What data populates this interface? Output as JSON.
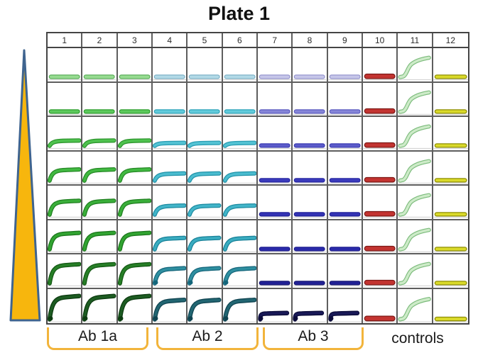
{
  "chart_data": {
    "type": "line",
    "title": "Plate 1",
    "description": "96-well plate figure: 8 rows x 12 columns of miniature kinetic binding curves; signal amplitude increases down the rows with concentration",
    "columns": [
      "1",
      "2",
      "3",
      "4",
      "5",
      "6",
      "7",
      "8",
      "9",
      "10",
      "11",
      "12"
    ],
    "row_count": 8,
    "legend_position": "bottom",
    "groups": [
      {
        "label": "Ab 1a",
        "columns": "1-3",
        "bracket": true,
        "color_family": "green"
      },
      {
        "label": "Ab 2",
        "columns": "4-6",
        "bracket": true,
        "color_family": "cyan"
      },
      {
        "label": "Ab 3",
        "columns": "7-9",
        "bracket": true,
        "color_family": "blue-purple"
      },
      {
        "label": "controls",
        "columns": "10-12",
        "bracket": false,
        "color_family": "red / pale-green / yellow"
      }
    ],
    "concentration_gradient": {
      "shape": "triangle, narrow at top and wide at bottom",
      "fill": "#F7B60D",
      "border": "#3F648F"
    },
    "grid_line_color": "#5E5E5E",
    "bracket_color": "#F2B43B",
    "wells": [
      [
        {
          "shape": "flat",
          "h": 0,
          "fill": "#98DC92",
          "edge": "#5BAE5B"
        },
        {
          "shape": "flat",
          "h": 0,
          "fill": "#98DC92",
          "edge": "#5BAE5B"
        },
        {
          "shape": "flat",
          "h": 0,
          "fill": "#98DC92",
          "edge": "#5BAE5B"
        },
        {
          "shape": "flat",
          "h": 0,
          "fill": "#B3DAE7",
          "edge": "#7FB2C7"
        },
        {
          "shape": "flat",
          "h": 0,
          "fill": "#B3DAE7",
          "edge": "#7FB2C7"
        },
        {
          "shape": "flat",
          "h": 0,
          "fill": "#B3DAE7",
          "edge": "#7FB2C7"
        },
        {
          "shape": "flat",
          "h": 0,
          "fill": "#C7C7E9",
          "edge": "#9696CE"
        },
        {
          "shape": "flat",
          "h": 0,
          "fill": "#C7C7E9",
          "edge": "#9696CE"
        },
        {
          "shape": "flat",
          "h": 0,
          "fill": "#C7C7E9",
          "edge": "#9696CE"
        },
        {
          "shape": "flat",
          "h": 0,
          "fill": "#C33431",
          "edge": "#7E1815",
          "thick": true
        },
        {
          "shape": "scurve",
          "h": 0.78,
          "fill": "#CDEBC8",
          "edge": "#7CBB7C"
        },
        {
          "shape": "flat",
          "h": 0,
          "fill": "#DADA2A",
          "edge": "#8D8D04"
        }
      ],
      [
        {
          "shape": "flat",
          "h": 0,
          "fill": "#5CC95C",
          "edge": "#2F9E2F"
        },
        {
          "shape": "flat",
          "h": 0,
          "fill": "#5CC95C",
          "edge": "#2F9E2F"
        },
        {
          "shape": "flat",
          "h": 0,
          "fill": "#5CC95C",
          "edge": "#2F9E2F"
        },
        {
          "shape": "flat",
          "h": 0,
          "fill": "#62CBDB",
          "edge": "#2FA4BA"
        },
        {
          "shape": "flat",
          "h": 0,
          "fill": "#62CBDB",
          "edge": "#2FA4BA"
        },
        {
          "shape": "flat",
          "h": 0,
          "fill": "#62CBDB",
          "edge": "#2FA4BA"
        },
        {
          "shape": "flat",
          "h": 0,
          "fill": "#8686D8",
          "edge": "#5C5CC0"
        },
        {
          "shape": "flat",
          "h": 0,
          "fill": "#8686D8",
          "edge": "#5C5CC0"
        },
        {
          "shape": "flat",
          "h": 0,
          "fill": "#8686D8",
          "edge": "#5C5CC0"
        },
        {
          "shape": "flat",
          "h": 0,
          "fill": "#C33431",
          "edge": "#7E1815",
          "thick": true
        },
        {
          "shape": "scurve",
          "h": 0.78,
          "fill": "#CDEBC8",
          "edge": "#7CBB7C"
        },
        {
          "shape": "flat",
          "h": 0,
          "fill": "#DADA2A",
          "edge": "#8D8D04"
        }
      ],
      [
        {
          "shape": "rise",
          "h": 0.2,
          "fill": "#4EC24E",
          "edge": "#2B932B"
        },
        {
          "shape": "rise",
          "h": 0.2,
          "fill": "#4EC24E",
          "edge": "#2B932B"
        },
        {
          "shape": "rise",
          "h": 0.2,
          "fill": "#4EC24E",
          "edge": "#2B932B"
        },
        {
          "shape": "rise",
          "h": 0.11,
          "fill": "#53C3D4",
          "edge": "#289BB1"
        },
        {
          "shape": "rise",
          "h": 0.11,
          "fill": "#53C3D4",
          "edge": "#289BB1"
        },
        {
          "shape": "rise",
          "h": 0.11,
          "fill": "#53C3D4",
          "edge": "#289BB1"
        },
        {
          "shape": "flat",
          "h": 0,
          "fill": "#5B5BCA",
          "edge": "#3C3CB2"
        },
        {
          "shape": "flat",
          "h": 0,
          "fill": "#5B5BCA",
          "edge": "#3C3CB2"
        },
        {
          "shape": "flat",
          "h": 0,
          "fill": "#5B5BCA",
          "edge": "#3C3CB2"
        },
        {
          "shape": "flat",
          "h": 0,
          "fill": "#C33431",
          "edge": "#7E1815",
          "thick": true
        },
        {
          "shape": "scurve",
          "h": 0.78,
          "fill": "#CDEBC8",
          "edge": "#7CBB7C"
        },
        {
          "shape": "flat",
          "h": 0,
          "fill": "#DADA2A",
          "edge": "#8D8D04"
        }
      ],
      [
        {
          "shape": "rise",
          "h": 0.42,
          "fill": "#41B941",
          "edge": "#258825"
        },
        {
          "shape": "rise",
          "h": 0.42,
          "fill": "#41B941",
          "edge": "#258825"
        },
        {
          "shape": "rise",
          "h": 0.42,
          "fill": "#41B941",
          "edge": "#258825"
        },
        {
          "shape": "rise",
          "h": 0.27,
          "fill": "#4ABCCF",
          "edge": "#2292A8"
        },
        {
          "shape": "rise",
          "h": 0.27,
          "fill": "#4ABCCF",
          "edge": "#2292A8"
        },
        {
          "shape": "rise",
          "h": 0.27,
          "fill": "#4ABCCF",
          "edge": "#2292A8"
        },
        {
          "shape": "flat",
          "h": 0,
          "fill": "#3B3BBC",
          "edge": "#2626A2"
        },
        {
          "shape": "flat",
          "h": 0,
          "fill": "#3B3BBC",
          "edge": "#2626A2"
        },
        {
          "shape": "flat",
          "h": 0,
          "fill": "#3B3BBC",
          "edge": "#2626A2"
        },
        {
          "shape": "flat",
          "h": 0,
          "fill": "#C33431",
          "edge": "#7E1815",
          "thick": true
        },
        {
          "shape": "scurve",
          "h": 0.78,
          "fill": "#CDEBC8",
          "edge": "#7CBB7C"
        },
        {
          "shape": "flat",
          "h": 0,
          "fill": "#DADA2A",
          "edge": "#8D8D04"
        }
      ],
      [
        {
          "shape": "rise",
          "h": 0.52,
          "fill": "#3AAF3A",
          "edge": "#1F7E1F"
        },
        {
          "shape": "rise",
          "h": 0.52,
          "fill": "#3AAF3A",
          "edge": "#1F7E1F"
        },
        {
          "shape": "rise",
          "h": 0.52,
          "fill": "#3AAF3A",
          "edge": "#1F7E1F"
        },
        {
          "shape": "rise",
          "h": 0.34,
          "fill": "#42B5C9",
          "edge": "#1D8AA0"
        },
        {
          "shape": "rise",
          "h": 0.34,
          "fill": "#42B5C9",
          "edge": "#1D8AA0"
        },
        {
          "shape": "rise",
          "h": 0.34,
          "fill": "#42B5C9",
          "edge": "#1D8AA0"
        },
        {
          "shape": "flat",
          "h": 0,
          "fill": "#3333B4",
          "edge": "#212198"
        },
        {
          "shape": "flat",
          "h": 0,
          "fill": "#3333B4",
          "edge": "#212198"
        },
        {
          "shape": "flat",
          "h": 0,
          "fill": "#3333B4",
          "edge": "#212198"
        },
        {
          "shape": "flat",
          "h": 0,
          "fill": "#C33431",
          "edge": "#7E1815",
          "thick": true
        },
        {
          "shape": "scurve",
          "h": 0.78,
          "fill": "#CDEBC8",
          "edge": "#7CBB7C"
        },
        {
          "shape": "flat",
          "h": 0,
          "fill": "#DADA2A",
          "edge": "#8D8D04"
        }
      ],
      [
        {
          "shape": "rise",
          "h": 0.62,
          "fill": "#31A431",
          "edge": "#1A741A"
        },
        {
          "shape": "rise",
          "h": 0.62,
          "fill": "#31A431",
          "edge": "#1A741A"
        },
        {
          "shape": "rise",
          "h": 0.62,
          "fill": "#31A431",
          "edge": "#1A741A"
        },
        {
          "shape": "rise",
          "h": 0.43,
          "fill": "#3AACC0",
          "edge": "#188198"
        },
        {
          "shape": "rise",
          "h": 0.43,
          "fill": "#3AACC0",
          "edge": "#188198"
        },
        {
          "shape": "rise",
          "h": 0.43,
          "fill": "#3AACC0",
          "edge": "#188198"
        },
        {
          "shape": "flat",
          "h": 0,
          "fill": "#2B2BAA",
          "edge": "#1B1B8E"
        },
        {
          "shape": "flat",
          "h": 0,
          "fill": "#2B2BAA",
          "edge": "#1B1B8E"
        },
        {
          "shape": "flat",
          "h": 0,
          "fill": "#2B2BAA",
          "edge": "#1B1B8E"
        },
        {
          "shape": "flat",
          "h": 0,
          "fill": "#C33431",
          "edge": "#7E1815",
          "thick": true
        },
        {
          "shape": "scurve",
          "h": 0.78,
          "fill": "#CDEBC8",
          "edge": "#7CBB7C"
        },
        {
          "shape": "flat",
          "h": 0,
          "fill": "#DADA2A",
          "edge": "#8D8D04"
        }
      ],
      [
        {
          "shape": "rise",
          "h": 0.72,
          "fill": "#277F27",
          "edge": "#135713"
        },
        {
          "shape": "rise",
          "h": 0.72,
          "fill": "#277F27",
          "edge": "#135713"
        },
        {
          "shape": "rise",
          "h": 0.72,
          "fill": "#277F27",
          "edge": "#135713"
        },
        {
          "shape": "rise",
          "h": 0.57,
          "fill": "#2F8FA0",
          "edge": "#14657A",
          "dot": true
        },
        {
          "shape": "rise",
          "h": 0.57,
          "fill": "#2F8FA0",
          "edge": "#14657A",
          "dot": true
        },
        {
          "shape": "rise",
          "h": 0.57,
          "fill": "#2F8FA0",
          "edge": "#14657A",
          "dot": true
        },
        {
          "shape": "flat",
          "h": 0,
          "fill": "#222296",
          "edge": "#151572"
        },
        {
          "shape": "flat",
          "h": 0,
          "fill": "#222296",
          "edge": "#151572"
        },
        {
          "shape": "flat",
          "h": 0,
          "fill": "#222296",
          "edge": "#151572"
        },
        {
          "shape": "flat",
          "h": 0,
          "fill": "#C33431",
          "edge": "#7E1815",
          "thick": true
        },
        {
          "shape": "scurve",
          "h": 0.78,
          "fill": "#CDEBC8",
          "edge": "#7CBB7C"
        },
        {
          "shape": "flat",
          "h": 0,
          "fill": "#DADA2A",
          "edge": "#8D8D04"
        }
      ],
      [
        {
          "shape": "rise",
          "h": 0.84,
          "fill": "#1D5C22",
          "edge": "#0C3B10",
          "dot": true
        },
        {
          "shape": "rise",
          "h": 0.84,
          "fill": "#1D5C22",
          "edge": "#0C3B10",
          "dot": true
        },
        {
          "shape": "rise",
          "h": 0.84,
          "fill": "#1D5C22",
          "edge": "#0C3B10",
          "dot": true
        },
        {
          "shape": "rise",
          "h": 0.7,
          "fill": "#226672",
          "edge": "#0F4350",
          "dot": true
        },
        {
          "shape": "rise",
          "h": 0.7,
          "fill": "#226672",
          "edge": "#0F4350",
          "dot": true
        },
        {
          "shape": "rise",
          "h": 0.7,
          "fill": "#226672",
          "edge": "#0F4350",
          "dot": true
        },
        {
          "shape": "step",
          "h": 0.22,
          "fill": "#191957",
          "edge": "#0C0C3A",
          "dot": true
        },
        {
          "shape": "step",
          "h": 0.22,
          "fill": "#191957",
          "edge": "#0C0C3A",
          "dot": true
        },
        {
          "shape": "step",
          "h": 0.22,
          "fill": "#191957",
          "edge": "#0C0C3A",
          "dot": true
        },
        {
          "shape": "flat",
          "h": 0,
          "fill": "#C33431",
          "edge": "#7E1815",
          "thick": true
        },
        {
          "shape": "scurve",
          "h": 0.78,
          "fill": "#CDEBC8",
          "edge": "#7CBB7C"
        },
        {
          "shape": "flat",
          "h": 0,
          "fill": "#DADA2A",
          "edge": "#8D8D04"
        }
      ]
    ]
  }
}
